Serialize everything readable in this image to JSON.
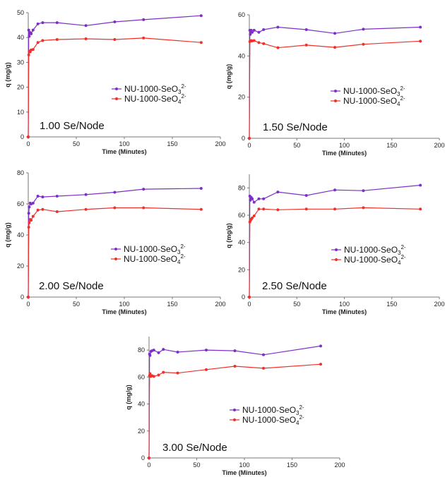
{
  "chart_data": [
    {
      "type": "line",
      "annotation": "1.00 Se/Node",
      "xlabel": "Time (Minutes)",
      "ylabel": "q (mg/g)",
      "xlim": [
        0,
        200
      ],
      "ylim": [
        0,
        50
      ],
      "xticks": [
        0,
        50,
        100,
        150,
        200
      ],
      "yticks": [
        0,
        10,
        20,
        30,
        40,
        50
      ],
      "legend_position": "center-right",
      "series": [
        {
          "name": "NU-1000-SeO3 2-",
          "label_main": "NU-1000-SeO",
          "label_sub": "3",
          "label_sup": "2-",
          "color": "#7d2fc7",
          "x": [
            0,
            0.5,
            1,
            2,
            3,
            5,
            10,
            15,
            30,
            60,
            90,
            120,
            180
          ],
          "y": [
            0,
            43,
            40.5,
            42,
            41.5,
            43,
            45.5,
            46,
            46,
            44.8,
            46.3,
            47.2,
            48.8
          ]
        },
        {
          "name": "NU-1000-SeO4 2-",
          "label_main": "NU-1000-SeO",
          "label_sub": "4",
          "label_sup": "2-",
          "color": "#f0302b",
          "x": [
            0,
            0.5,
            1,
            2,
            3,
            5,
            10,
            15,
            30,
            60,
            90,
            120,
            180
          ],
          "y": [
            0,
            33,
            34.5,
            34.2,
            35,
            35.2,
            38,
            38.8,
            39.2,
            39.5,
            39.2,
            39.8,
            38
          ]
        }
      ]
    },
    {
      "type": "line",
      "annotation": "1.50 Se/Node",
      "xlabel": "Time (Minutes)",
      "ylabel": "q (mg/g)",
      "xlim": [
        0,
        200
      ],
      "ylim": [
        0,
        60
      ],
      "xticks": [
        0,
        50,
        100,
        150,
        200
      ],
      "yticks": [
        0,
        20,
        40,
        60
      ],
      "legend_position": "center-right",
      "series": [
        {
          "name": "NU-1000-SeO3 2-",
          "label_main": "NU-1000-SeO",
          "label_sub": "3",
          "label_sup": "2-",
          "color": "#7d2fc7",
          "x": [
            0,
            0.5,
            1,
            2,
            3,
            5,
            10,
            15,
            30,
            60,
            90,
            120,
            180
          ],
          "y": [
            0,
            52.5,
            50.5,
            52.5,
            51.5,
            52.5,
            51.5,
            52.8,
            54,
            52.8,
            51,
            53,
            54
          ]
        },
        {
          "name": "NU-1000-SeO4 2-",
          "label_main": "NU-1000-SeO",
          "label_sub": "4",
          "label_sup": "2-",
          "color": "#f0302b",
          "x": [
            0,
            0.5,
            1,
            2,
            3,
            5,
            10,
            15,
            30,
            60,
            90,
            120,
            180
          ],
          "y": [
            0,
            47,
            47.2,
            47.5,
            47.3,
            47.5,
            46.5,
            46,
            44,
            45.3,
            44.2,
            45.7,
            47.2
          ]
        }
      ]
    },
    {
      "type": "line",
      "annotation": "2.00 Se/Node",
      "xlabel": "Time (Minutes)",
      "ylabel": "q (mg/g)",
      "xlim": [
        0,
        200
      ],
      "ylim": [
        0,
        80
      ],
      "xticks": [
        0,
        50,
        100,
        150,
        200
      ],
      "yticks": [
        0,
        20,
        40,
        60,
        80
      ],
      "legend_position": "center-right",
      "series": [
        {
          "name": "NU-1000-SeO3 2-",
          "label_main": "NU-1000-SeO",
          "label_sub": "3",
          "label_sup": "2-",
          "color": "#7d2fc7",
          "x": [
            0,
            0.5,
            1,
            2,
            3,
            5,
            10,
            15,
            30,
            60,
            90,
            120,
            180
          ],
          "y": [
            0,
            54,
            58,
            60.5,
            60,
            60.5,
            65,
            64.5,
            65,
            66,
            67.5,
            69.5,
            70
          ]
        },
        {
          "name": "NU-1000-SeO4 2-",
          "label_main": "NU-1000-SeO",
          "label_sub": "4",
          "label_sup": "2-",
          "color": "#f0302b",
          "x": [
            0,
            0.5,
            1,
            2,
            3,
            5,
            10,
            15,
            30,
            60,
            90,
            120,
            180
          ],
          "y": [
            0,
            45,
            48,
            50,
            49.5,
            52,
            56,
            56.5,
            55,
            56.5,
            57.5,
            57.5,
            56.5
          ]
        }
      ]
    },
    {
      "type": "line",
      "annotation": "2.50 Se/Node",
      "xlabel": "Time (Minutes)",
      "ylabel": "q (mg/g)",
      "xlim": [
        0,
        200
      ],
      "ylim": [
        0,
        90
      ],
      "xticks": [
        0,
        50,
        100,
        150,
        200
      ],
      "yticks": [
        0,
        20,
        40,
        60,
        80
      ],
      "legend_position": "center-right",
      "series": [
        {
          "name": "NU-1000-SeO3 2-",
          "label_main": "NU-1000-SeO",
          "label_sub": "3",
          "label_sup": "2-",
          "color": "#7d2fc7",
          "x": [
            0,
            0.5,
            1,
            2,
            3,
            5,
            10,
            15,
            30,
            60,
            90,
            120,
            180
          ],
          "y": [
            0,
            74,
            71,
            73,
            72,
            69.5,
            72,
            72,
            77,
            74.5,
            78.5,
            78,
            82
          ]
        },
        {
          "name": "NU-1000-SeO4 2-",
          "label_main": "NU-1000-SeO",
          "label_sub": "4",
          "label_sup": "2-",
          "color": "#f0302b",
          "x": [
            0,
            0.5,
            1,
            2,
            3,
            5,
            10,
            15,
            30,
            60,
            90,
            120,
            180
          ],
          "y": [
            0,
            55,
            56,
            57,
            58,
            59.5,
            64.5,
            64.5,
            64,
            64.5,
            64.5,
            65.5,
            64.5
          ]
        }
      ]
    },
    {
      "type": "line",
      "annotation": "3.00 Se/Node",
      "xlabel": "Time (Minutes)",
      "ylabel": "q (mg/g)",
      "xlim": [
        0,
        200
      ],
      "ylim": [
        0,
        90
      ],
      "xticks": [
        0,
        50,
        100,
        150,
        200
      ],
      "yticks": [
        0,
        20,
        40,
        60,
        80
      ],
      "legend_position": "center-right",
      "series": [
        {
          "name": "NU-1000-SeO3 2-",
          "label_main": "NU-1000-SeO",
          "label_sub": "3",
          "label_sup": "2-",
          "color": "#7d2fc7",
          "x": [
            0,
            0.5,
            1,
            2,
            3,
            5,
            10,
            15,
            30,
            60,
            90,
            120,
            180
          ],
          "y": [
            0,
            77,
            76,
            79,
            79.5,
            80,
            78,
            80.5,
            78.5,
            80,
            79.5,
            76.5,
            83
          ]
        },
        {
          "name": "NU-1000-SeO4 2-",
          "label_main": "NU-1000-SeO",
          "label_sub": "4",
          "label_sup": "2-",
          "color": "#f0302b",
          "x": [
            0,
            0.5,
            1,
            2,
            3,
            5,
            10,
            15,
            30,
            60,
            90,
            120,
            180
          ],
          "y": [
            0,
            61,
            62.5,
            60.5,
            61,
            60.5,
            61.5,
            63.5,
            63,
            65.5,
            68,
            66.5,
            69.5
          ]
        }
      ]
    }
  ]
}
